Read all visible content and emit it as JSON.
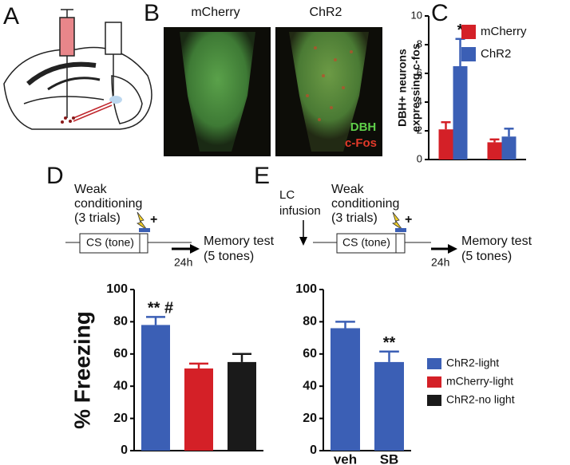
{
  "figure": {
    "letters": [
      "A",
      "B",
      "C",
      "D",
      "E"
    ],
    "image_titles": [
      "mCherry",
      "ChR2"
    ],
    "stains": [
      "DBH",
      "c-Fos"
    ],
    "protocol_d": {
      "conditioning": [
        "Weak",
        "conditioning",
        "(3 trials)"
      ],
      "plus": "+",
      "cs": "CS (tone)",
      "delay": "24h",
      "test": [
        "Memory test",
        "(5 tones)"
      ]
    },
    "protocol_e": {
      "infusion": [
        "LC",
        "infusion"
      ],
      "conditioning": [
        "Weak",
        "conditioning",
        "(3 trials)"
      ],
      "plus": "+",
      "cs": "CS (tone)",
      "delay": "24h",
      "test": [
        "Memory test",
        "(5 tones)"
      ]
    }
  },
  "chart_data": [
    {
      "type": "bar",
      "ylabel_lines": [
        "DBH+ neurons",
        "expressing c-fos"
      ],
      "categories": [
        null,
        null
      ],
      "series": [
        {
          "name": "mCherry",
          "color": "#d42027",
          "values": [
            2.1,
            1.2
          ],
          "errors": [
            0.5,
            0.2
          ]
        },
        {
          "name": "ChR2",
          "color": "#3b5fb5",
          "values": [
            6.5,
            1.6
          ],
          "errors": [
            1.9,
            0.55
          ]
        }
      ],
      "annotations": [
        "*"
      ],
      "ylim": [
        0,
        10
      ],
      "yticks": [
        0,
        2,
        4,
        6,
        8,
        10
      ]
    },
    {
      "type": "bar",
      "ylabel": "% Freezing",
      "categories": [
        null
      ],
      "series": [
        {
          "name": "ChR2-light",
          "color": "#3b5fb5",
          "values": [
            78
          ],
          "errors": [
            5
          ]
        },
        {
          "name": "mCherry-light",
          "color": "#d42027",
          "values": [
            51
          ],
          "errors": [
            3
          ]
        },
        {
          "name": "ChR2-no light",
          "color": "#1a1a1a",
          "values": [
            55
          ],
          "errors": [
            5
          ]
        }
      ],
      "annotations": [
        "** #"
      ],
      "ylim": [
        0,
        100
      ],
      "yticks": [
        0,
        20,
        40,
        60,
        80,
        100
      ]
    },
    {
      "type": "bar",
      "categories": [
        "veh",
        "SB"
      ],
      "series": [
        {
          "color": "#3b5fb5",
          "values": [
            76,
            55
          ],
          "errors": [
            4,
            6.5
          ]
        }
      ],
      "annotations": [
        "**"
      ],
      "ylim": [
        0,
        100
      ],
      "yticks": [
        0,
        20,
        40,
        60,
        80,
        100
      ]
    }
  ]
}
